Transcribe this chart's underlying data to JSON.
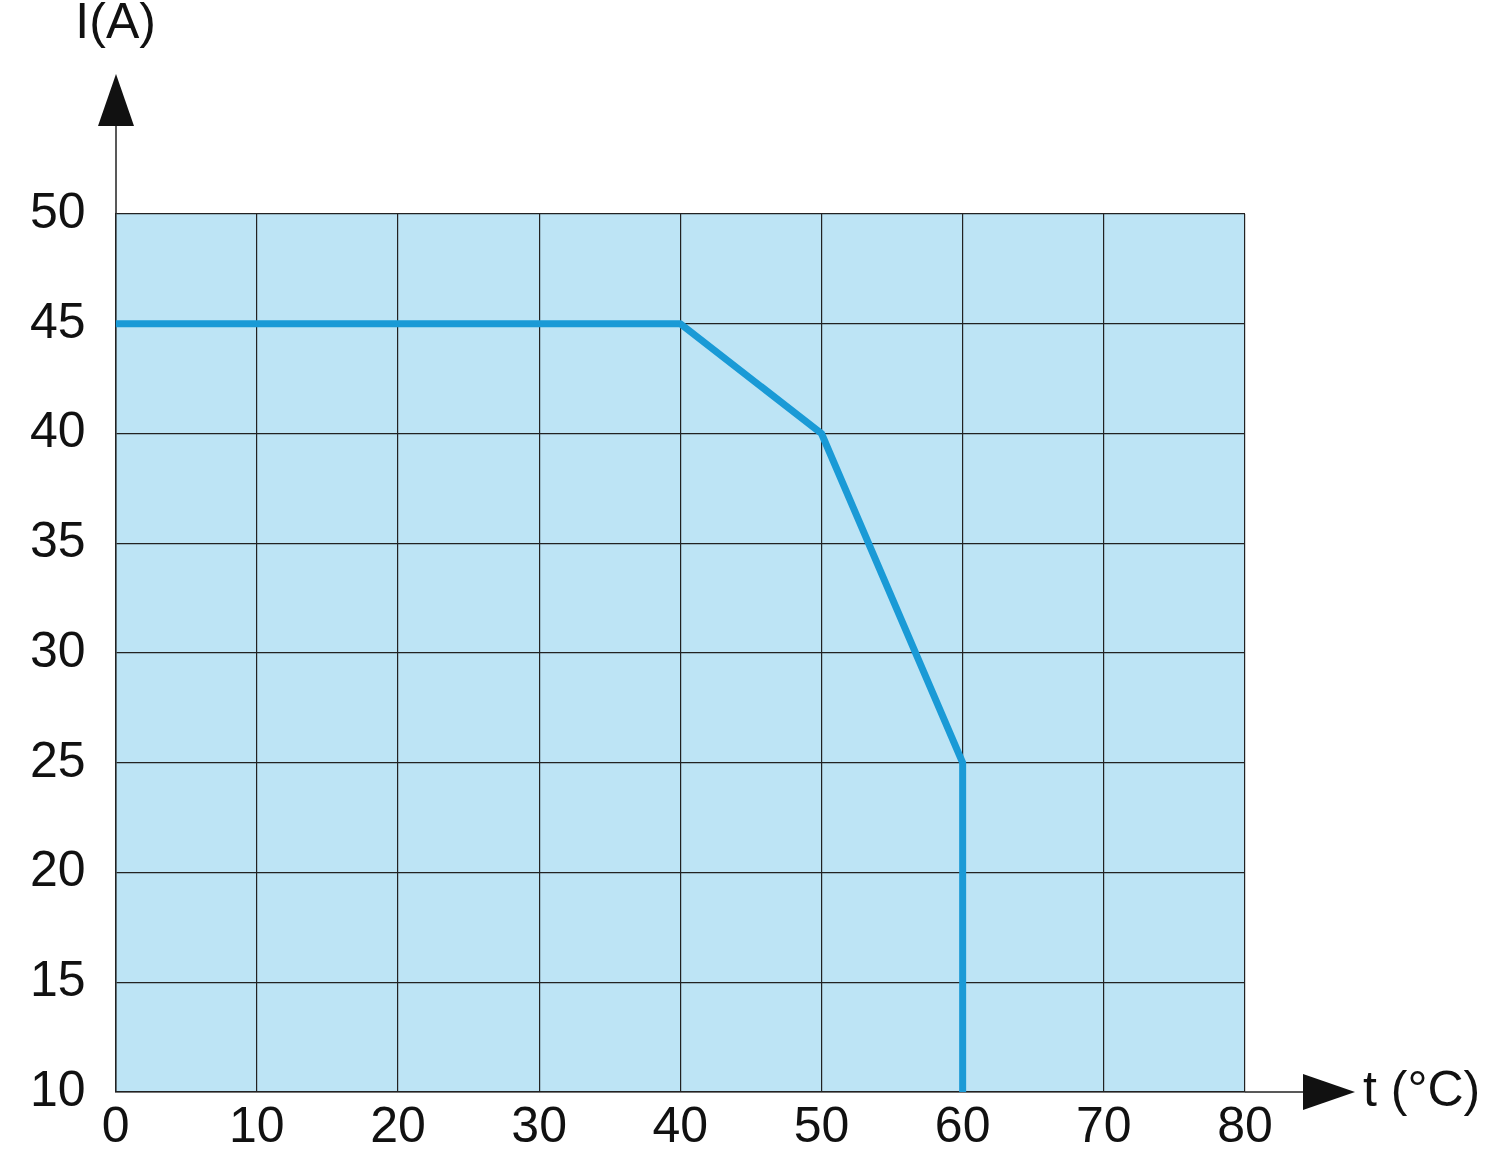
{
  "chart_data": {
    "type": "line",
    "xlabel": "t (°C)",
    "ylabel": "I(A)",
    "x": [
      0,
      40,
      50,
      60,
      60
    ],
    "series": [
      {
        "color": "#1a9ad6",
        "values": [
          45,
          45,
          40,
          25,
          10
        ]
      }
    ],
    "xlim": [
      0,
      80
    ],
    "xticks": [
      0,
      10,
      20,
      30,
      40,
      50,
      60,
      70,
      80
    ],
    "ylim": [
      10,
      50
    ],
    "yticks": [
      10,
      15,
      20,
      25,
      30,
      35,
      40,
      45,
      50
    ],
    "grid": true,
    "legend": false,
    "marker": "none",
    "line_style": "solid"
  }
}
